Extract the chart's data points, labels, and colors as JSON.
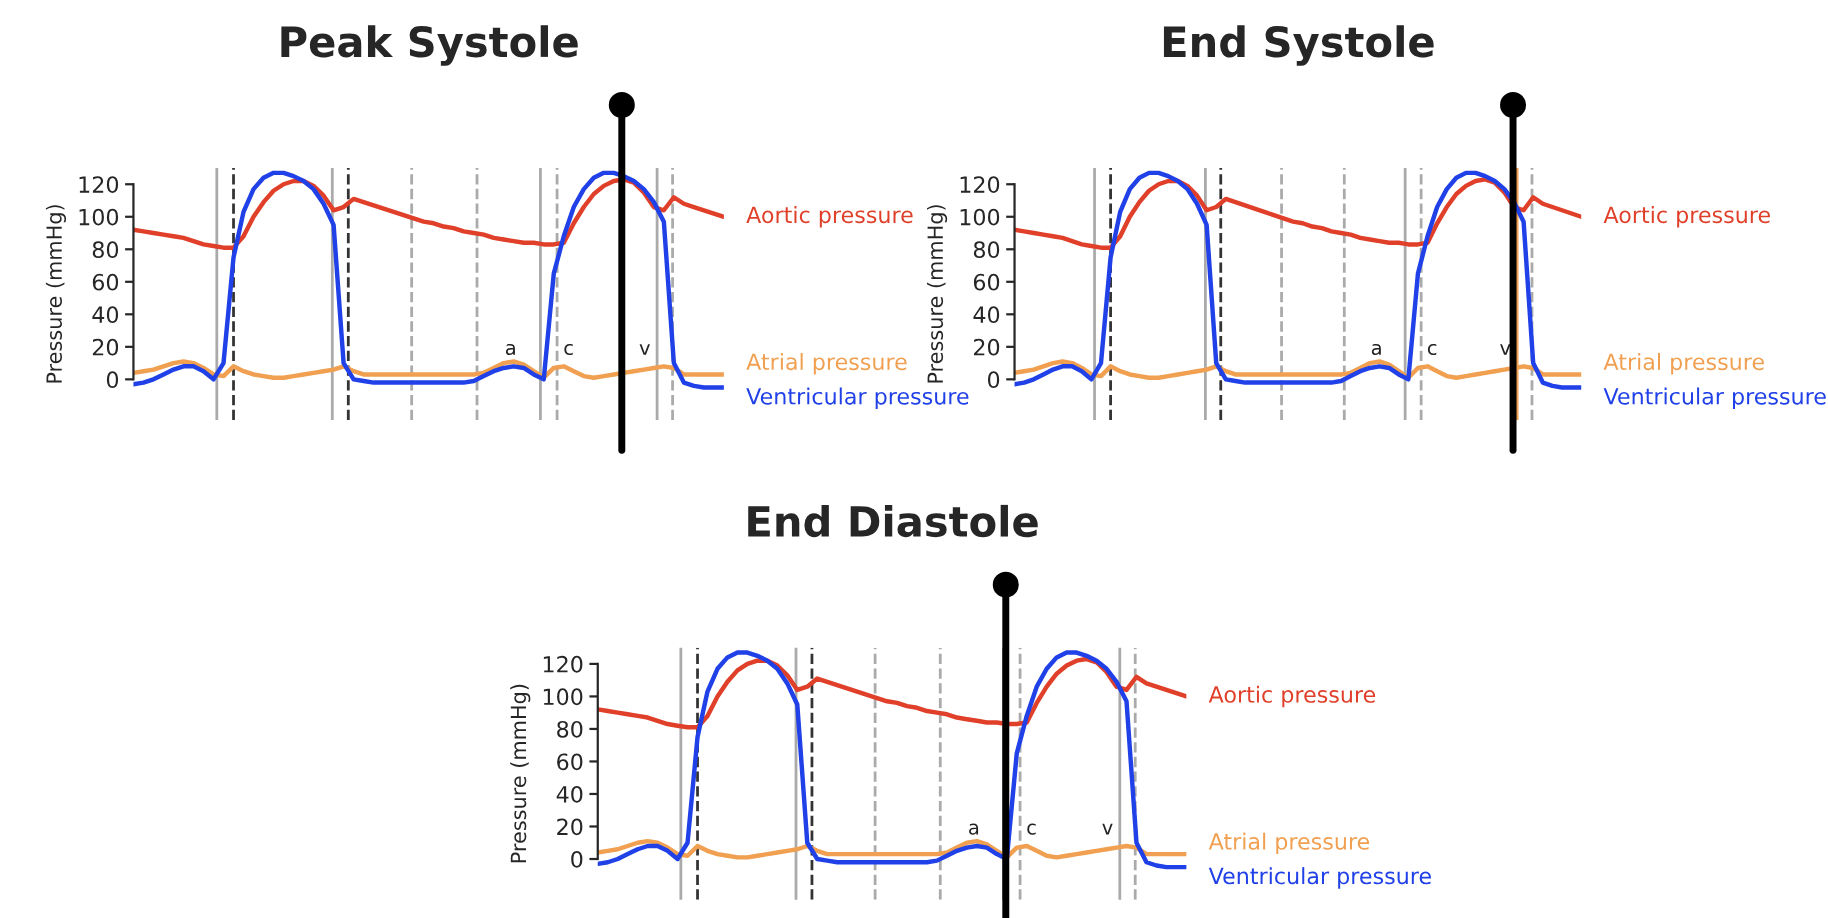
{
  "chart_data": [
    {
      "type": "line",
      "title": "Peak Systole",
      "ylabel": "Pressure (mmHg)",
      "tick_labels": "y",
      "categories": [
        null,
        null,
        null,
        null,
        null,
        null,
        null,
        null,
        null,
        null,
        null,
        null,
        null,
        null,
        null,
        null,
        null,
        null,
        null,
        null,
        null,
        null,
        null,
        null,
        null,
        null,
        null,
        null,
        null,
        null,
        null,
        null,
        null,
        null,
        null,
        null,
        null,
        null,
        null,
        null,
        null,
        null,
        null,
        null,
        null,
        null,
        null,
        null,
        null,
        null,
        null,
        null,
        null,
        null,
        null,
        null,
        null,
        null,
        null,
        null
      ],
      "ylim": [
        -25,
        130
      ],
      "yticks": [
        0,
        20,
        40,
        60,
        80,
        100,
        120
      ],
      "series": [
        {
          "name": "Aortic pressure",
          "color": "#e0402a",
          "values": [
            92,
            91,
            90,
            89,
            88,
            87,
            85,
            83,
            82,
            81,
            81,
            88,
            100,
            109,
            116,
            120,
            122,
            122,
            119,
            113,
            104,
            106,
            111,
            109,
            107,
            105,
            103,
            101,
            99,
            97,
            96,
            94,
            93,
            91,
            90,
            89,
            87,
            86,
            85,
            84,
            84,
            83,
            83,
            84,
            96,
            106,
            114,
            119,
            122,
            123,
            121,
            115,
            106,
            104,
            112,
            108,
            106,
            104,
            102,
            100
          ]
        },
        {
          "name": "Atrial pressure",
          "color": "#f0a050",
          "values": [
            4,
            5,
            6,
            8,
            10,
            11,
            10,
            7,
            3,
            2,
            8,
            5,
            3,
            2,
            1,
            1,
            2,
            3,
            4,
            5,
            6,
            8,
            5,
            3,
            3,
            3,
            3,
            3,
            3,
            3,
            3,
            3,
            3,
            3,
            3,
            4,
            7,
            10,
            11,
            9,
            5,
            1,
            7,
            8,
            5,
            2,
            1,
            2,
            3,
            4,
            5,
            6,
            7,
            8,
            7,
            3,
            3,
            3,
            3,
            3
          ]
        },
        {
          "name": "Ventricular pressure",
          "color": "#2040e8",
          "values": [
            -3,
            -2,
            0,
            3,
            6,
            8,
            8,
            5,
            0,
            10,
            75,
            103,
            117,
            124,
            127,
            127,
            125,
            122,
            117,
            108,
            95,
            10,
            0,
            -1,
            -2,
            -2,
            -2,
            -2,
            -2,
            -2,
            -2,
            -2,
            -2,
            -2,
            -1,
            2,
            5,
            7,
            8,
            7,
            3,
            0,
            65,
            88,
            106,
            117,
            124,
            127,
            127,
            125,
            122,
            117,
            109,
            97,
            10,
            -2,
            -4,
            -5,
            -5,
            -5
          ]
        }
      ],
      "annotations": [
        "a",
        "c",
        "v"
      ],
      "grid": "x"
    },
    {
      "type": "line",
      "title": "End Systole",
      "ylabel": "Pressure (mmHg)",
      "tick_labels": "y",
      "categories": [
        null,
        null,
        null,
        null,
        null,
        null,
        null,
        null,
        null,
        null,
        null,
        null,
        null,
        null,
        null,
        null,
        null,
        null,
        null,
        null,
        null,
        null,
        null,
        null,
        null,
        null,
        null,
        null,
        null,
        null,
        null,
        null,
        null,
        null,
        null,
        null,
        null,
        null,
        null,
        null,
        null,
        null,
        null,
        null,
        null,
        null,
        null,
        null,
        null,
        null,
        null,
        null,
        null,
        null,
        null,
        null,
        null,
        null,
        null,
        null
      ],
      "ylim": [
        -25,
        130
      ],
      "yticks": [
        0,
        20,
        40,
        60,
        80,
        100,
        120
      ],
      "series": [
        {
          "name": "Aortic pressure",
          "color": "#e0402a",
          "values": [
            92,
            91,
            90,
            89,
            88,
            87,
            85,
            83,
            82,
            81,
            81,
            88,
            100,
            109,
            116,
            120,
            122,
            122,
            119,
            113,
            104,
            106,
            111,
            109,
            107,
            105,
            103,
            101,
            99,
            97,
            96,
            94,
            93,
            91,
            90,
            89,
            87,
            86,
            85,
            84,
            84,
            83,
            83,
            84,
            96,
            106,
            114,
            119,
            122,
            123,
            121,
            115,
            106,
            104,
            112,
            108,
            106,
            104,
            102,
            100
          ]
        },
        {
          "name": "Atrial pressure",
          "color": "#f0a050",
          "values": [
            4,
            5,
            6,
            8,
            10,
            11,
            10,
            7,
            3,
            2,
            8,
            5,
            3,
            2,
            1,
            1,
            2,
            3,
            4,
            5,
            6,
            8,
            5,
            3,
            3,
            3,
            3,
            3,
            3,
            3,
            3,
            3,
            3,
            3,
            3,
            4,
            7,
            10,
            11,
            9,
            5,
            1,
            7,
            8,
            5,
            2,
            1,
            2,
            3,
            4,
            5,
            6,
            7,
            8,
            7,
            3,
            3,
            3,
            3,
            3
          ]
        },
        {
          "name": "Ventricular pressure",
          "color": "#2040e8",
          "values": [
            -3,
            -2,
            0,
            3,
            6,
            8,
            8,
            5,
            0,
            10,
            75,
            103,
            117,
            124,
            127,
            127,
            125,
            122,
            117,
            108,
            95,
            10,
            0,
            -1,
            -2,
            -2,
            -2,
            -2,
            -2,
            -2,
            -2,
            -2,
            -2,
            -2,
            -1,
            2,
            5,
            7,
            8,
            7,
            3,
            0,
            65,
            88,
            106,
            117,
            124,
            127,
            127,
            125,
            122,
            117,
            109,
            97,
            10,
            -2,
            -4,
            -5,
            -5,
            -5
          ]
        }
      ],
      "annotations": [
        "a",
        "c",
        "v"
      ],
      "grid": "x"
    },
    {
      "type": "line",
      "title": "End Diastole",
      "ylabel": "Pressure (mmHg)",
      "tick_labels": "y",
      "categories": [
        null,
        null,
        null,
        null,
        null,
        null,
        null,
        null,
        null,
        null,
        null,
        null,
        null,
        null,
        null,
        null,
        null,
        null,
        null,
        null,
        null,
        null,
        null,
        null,
        null,
        null,
        null,
        null,
        null,
        null,
        null,
        null,
        null,
        null,
        null,
        null,
        null,
        null,
        null,
        null,
        null,
        null,
        null,
        null,
        null,
        null,
        null,
        null,
        null,
        null,
        null,
        null,
        null,
        null,
        null,
        null,
        null,
        null,
        null,
        null
      ],
      "ylim": [
        -25,
        130
      ],
      "yticks": [
        0,
        20,
        40,
        60,
        80,
        100,
        120
      ],
      "series": [
        {
          "name": "Aortic pressure",
          "color": "#e0402a",
          "values": [
            92,
            91,
            90,
            89,
            88,
            87,
            85,
            83,
            82,
            81,
            81,
            88,
            100,
            109,
            116,
            120,
            122,
            122,
            119,
            113,
            104,
            106,
            111,
            109,
            107,
            105,
            103,
            101,
            99,
            97,
            96,
            94,
            93,
            91,
            90,
            89,
            87,
            86,
            85,
            84,
            84,
            83,
            83,
            84,
            96,
            106,
            114,
            119,
            122,
            123,
            121,
            115,
            106,
            104,
            112,
            108,
            106,
            104,
            102,
            100
          ]
        },
        {
          "name": "Atrial pressure",
          "color": "#f0a050",
          "values": [
            4,
            5,
            6,
            8,
            10,
            11,
            10,
            7,
            3,
            2,
            8,
            5,
            3,
            2,
            1,
            1,
            2,
            3,
            4,
            5,
            6,
            8,
            5,
            3,
            3,
            3,
            3,
            3,
            3,
            3,
            3,
            3,
            3,
            3,
            3,
            4,
            7,
            10,
            11,
            9,
            5,
            1,
            7,
            8,
            5,
            2,
            1,
            2,
            3,
            4,
            5,
            6,
            7,
            8,
            7,
            3,
            3,
            3,
            3,
            3
          ]
        },
        {
          "name": "Ventricular pressure",
          "color": "#2040e8",
          "values": [
            -3,
            -2,
            0,
            3,
            6,
            8,
            8,
            5,
            0,
            10,
            75,
            103,
            117,
            124,
            127,
            127,
            125,
            122,
            117,
            108,
            95,
            10,
            0,
            -1,
            -2,
            -2,
            -2,
            -2,
            -2,
            -2,
            -2,
            -2,
            -2,
            -2,
            -1,
            2,
            5,
            7,
            8,
            7,
            3,
            0,
            65,
            88,
            106,
            117,
            124,
            127,
            127,
            125,
            122,
            117,
            109,
            97,
            10,
            -2,
            -4,
            -5,
            -5,
            -5
          ]
        }
      ],
      "annotations": [
        "a",
        "c",
        "v"
      ],
      "grid": "x"
    }
  ]
}
